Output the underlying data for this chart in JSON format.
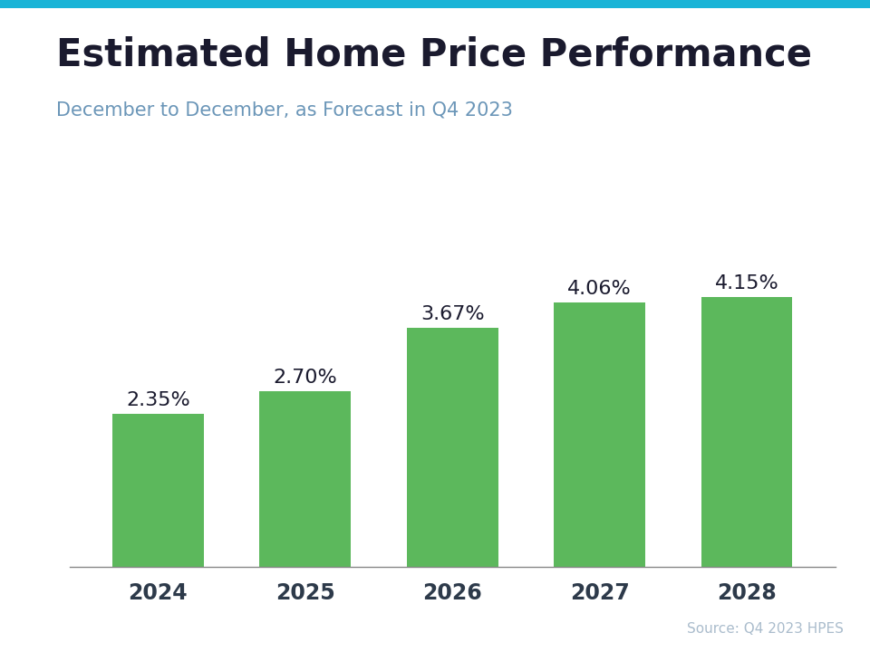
{
  "title": "Estimated Home Price Performance",
  "subtitle": "December to December, as Forecast in Q4 2023",
  "source": "Source: Q4 2023 HPES",
  "categories": [
    "2024",
    "2025",
    "2026",
    "2027",
    "2028"
  ],
  "values": [
    2.35,
    2.7,
    3.67,
    4.06,
    4.15
  ],
  "labels": [
    "2.35%",
    "2.70%",
    "3.67%",
    "4.06%",
    "4.15%"
  ],
  "bar_color": "#5cb85c",
  "title_color": "#1a1a2e",
  "subtitle_color": "#6b96b8",
  "source_color": "#aabccc",
  "tick_color": "#2d3a4a",
  "top_stripe_color": "#1ab4d7",
  "background_color": "#ffffff",
  "ylim": [
    0,
    5.2
  ],
  "title_fontsize": 30,
  "subtitle_fontsize": 15,
  "label_fontsize": 16,
  "tick_fontsize": 17,
  "source_fontsize": 11,
  "bar_width": 0.62
}
